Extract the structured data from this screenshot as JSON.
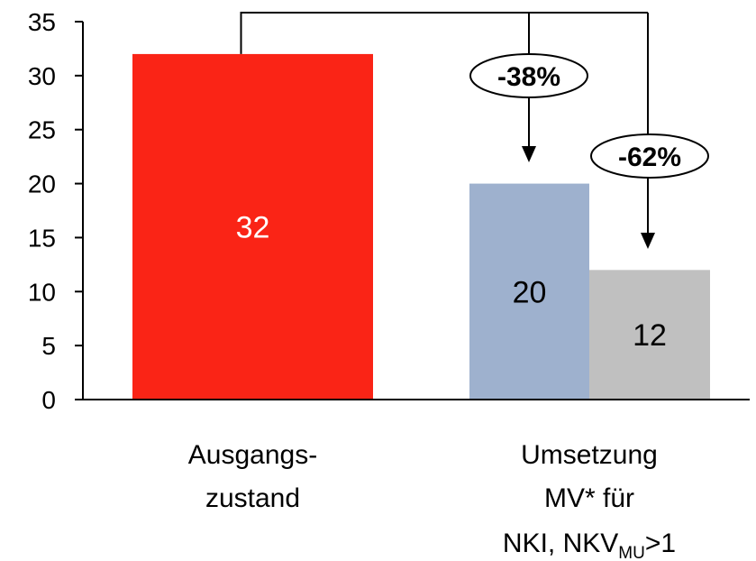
{
  "colors": {
    "ausgangszustand": "#fa2416",
    "umsetzung_nki": "#9eb1ce",
    "umsetzung_nkv": "#c0c0c0",
    "axis": "#000000",
    "value_label_light": "#ffffff",
    "value_label_dark": "#000000"
  },
  "chart_data": {
    "type": "bar",
    "title": "",
    "xlabel": "",
    "ylabel": "",
    "ylim": [
      0,
      35
    ],
    "yticks": [
      0,
      5,
      10,
      15,
      20,
      25,
      30,
      35
    ],
    "grid": false,
    "legend": "none",
    "categories": [
      {
        "lines": [
          "Ausgangs-",
          "zustand"
        ]
      },
      {
        "lines": [
          "Umsetzung",
          "MV* für"
        ],
        "last_line": {
          "text": "NKI, NKV",
          "sub": "MU",
          "suffix": ">1"
        }
      }
    ],
    "bars": [
      {
        "category_index": 0,
        "value": 32,
        "label": "32",
        "color_key": "ausgangszustand"
      },
      {
        "category_index": 1,
        "value": 20,
        "label": "20",
        "color_key": "umsetzung_nki"
      },
      {
        "category_index": 1,
        "value": 12,
        "label": "12",
        "color_key": "umsetzung_nkv"
      }
    ],
    "annotations": [
      {
        "text": "-38%",
        "from_bar": 0,
        "to_bar": 1
      },
      {
        "text": "-62%",
        "from_bar": 0,
        "to_bar": 2
      }
    ]
  }
}
